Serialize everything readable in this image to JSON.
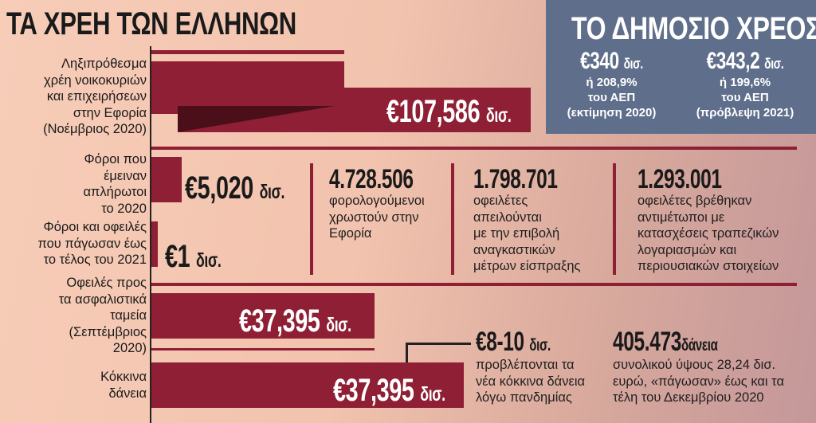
{
  "title": "ΤΑ ΧΡΕΗ ΤΩΝ ΕΛΛΗΝΩΝ",
  "colors": {
    "bar": "#8f1f34",
    "box": "#5e6e8b",
    "triangle": "#4a0f18"
  },
  "rows": [
    {
      "label": [
        "Ληξιπρόθεσμα",
        "χρέη νοικοκυριών",
        "και επιχειρήσεων",
        "στην Εφορία",
        "(Νοέμβριος 2020)"
      ],
      "value": "€107,586",
      "unit": "δισ."
    },
    {
      "label": [
        "Φόροι που",
        "έμειναν",
        "απλήρωτοι",
        "το 2020"
      ],
      "value": "€5,020",
      "unit": "δισ."
    },
    {
      "label": [
        "Φόροι και οφειλές",
        "που πάγωσαν έως",
        "το τέλος του 2021"
      ],
      "value": "€1",
      "unit": "δισ."
    },
    {
      "label": [
        "Οφειλές προς",
        "τα ασφαλιστικά",
        "ταμεία",
        "(Σεπτέμβριος",
        "2020)"
      ],
      "value": "€37,395",
      "unit": "δισ."
    },
    {
      "label": [
        "Κόκκινα",
        "δάνεια"
      ],
      "value": "€37,395",
      "unit": "δισ."
    }
  ],
  "public_debt": {
    "title": "ΤΟ ΔΗΜΟΣΙΟ ΧΡΕΟΣ",
    "items": [
      {
        "value": "€340",
        "unit": "δισ.",
        "lines": [
          "ή 208,9%",
          "του ΑΕΠ",
          "(εκτίμηση 2020)"
        ]
      },
      {
        "value": "€343,2",
        "unit": "δισ.",
        "lines": [
          "ή 199,6%",
          "του ΑΕΠ",
          "(πρόβλεψη 2021)"
        ]
      }
    ]
  },
  "stats": [
    {
      "value": "4.728.506",
      "lines": [
        "φορολογούμενοι",
        "χρωστούν στην",
        "Εφορία"
      ]
    },
    {
      "value": "1.798.701",
      "lines": [
        "οφειλέτες",
        "απειλούνται",
        "με την επιβολή",
        "αναγκαστικών",
        "μέτρων είσπραξης"
      ]
    },
    {
      "value": "1.293.001",
      "lines": [
        "οφειλέτες βρέθηκαν",
        "αντιμέτωποι με",
        "κατασχέσεις τραπεζικών",
        "λογαριασμών και",
        "περιουσιακών στοιχείων"
      ]
    }
  ],
  "new_loans": {
    "value": "€8-10",
    "unit": "δισ.",
    "lines": [
      "προβλέπονται τα",
      "νέα κόκκινα δάνεια",
      "λόγω πανδημίας"
    ]
  },
  "frozen_loans": {
    "value": "405.473",
    "unit": "δάνεια",
    "lines": [
      "συνολικού ύψους 28,24 δισ.",
      "ευρώ, «πάγωσαν» έως και τα",
      "τέλη του Δεκεμβρίου 2020"
    ]
  }
}
